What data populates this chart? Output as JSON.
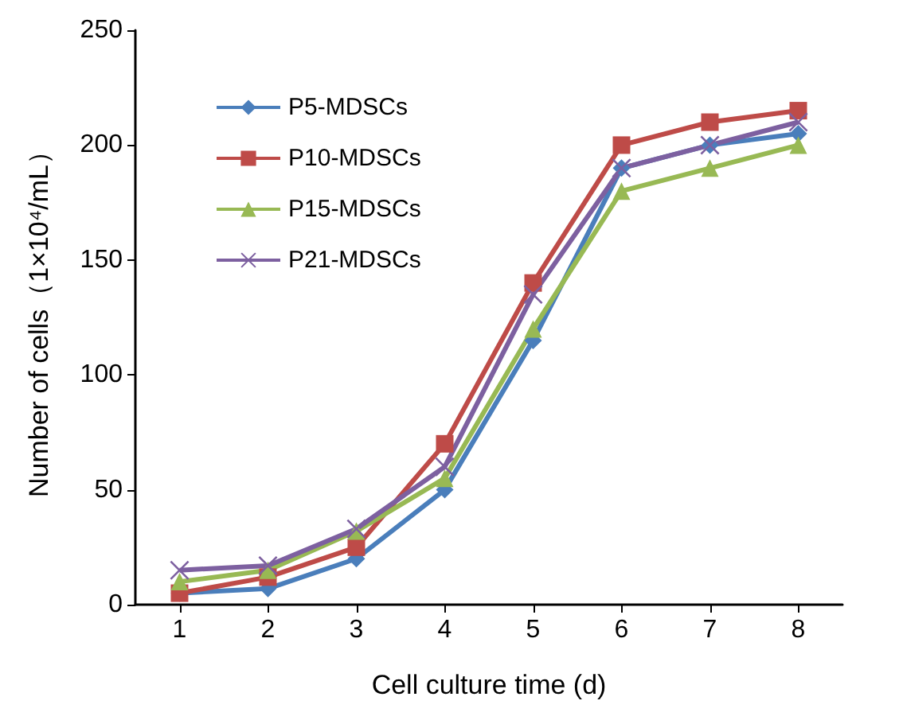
{
  "chart_data": {
    "type": "line",
    "xlabel": "Cell culture time (d)",
    "ylabel": "Number of cells（1×10⁴/mL）",
    "categories": [
      "1",
      "2",
      "3",
      "4",
      "5",
      "6",
      "7",
      "8"
    ],
    "series": [
      {
        "name": "P5-MDSCs",
        "color": "#4a7ebb",
        "marker": "diamond",
        "values": [
          5,
          7,
          20,
          50,
          115,
          190,
          200,
          205
        ]
      },
      {
        "name": "P10-MDSCs",
        "color": "#be4b48",
        "marker": "square",
        "values": [
          5,
          12,
          25,
          70,
          140,
          200,
          210,
          215
        ]
      },
      {
        "name": "P15-MDSCs",
        "color": "#98b954",
        "marker": "triangle",
        "values": [
          10,
          15,
          32,
          55,
          120,
          180,
          190,
          200
        ]
      },
      {
        "name": "P21-MDSCs",
        "color": "#7d60a0",
        "marker": "cross",
        "values": [
          15,
          17,
          33,
          60,
          135,
          190,
          200,
          210
        ]
      }
    ],
    "ylim": [
      0,
      250
    ],
    "yticks": [
      0,
      50,
      100,
      150,
      200,
      250
    ],
    "grid": false,
    "legend": "top left",
    "line_style": "solid"
  }
}
